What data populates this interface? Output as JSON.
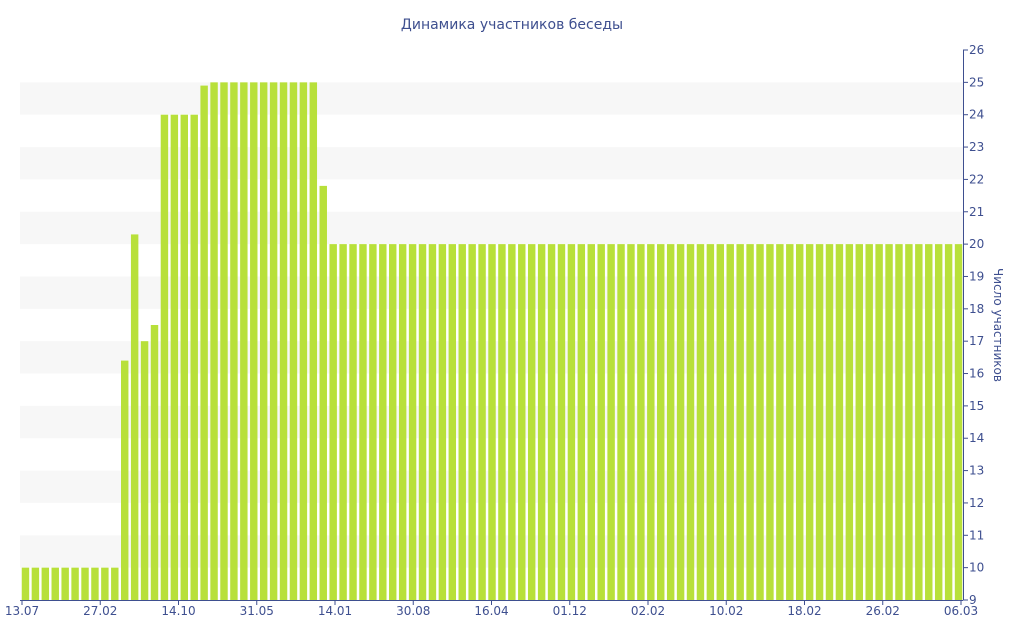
{
  "chart_data": {
    "type": "bar",
    "title": "Динамика участников беседы",
    "xlabel": "",
    "ylabel": "Число участников",
    "ylim": [
      9,
      26
    ],
    "y_ticks": [
      9,
      10,
      11,
      12,
      13,
      14,
      15,
      16,
      17,
      18,
      19,
      20,
      21,
      22,
      23,
      24,
      25,
      26
    ],
    "y_axis_position": "right",
    "grid": "alternating horizontal bands",
    "x_tick_labels": [
      "13.07",
      "27.02",
      "14.10",
      "31.05",
      "14.01",
      "30.08",
      "16.04",
      "01.12",
      "02.02",
      "10.02",
      "18.02",
      "26.02",
      "06.03"
    ],
    "values": [
      10,
      10,
      10,
      10,
      10,
      10,
      10,
      10,
      10,
      10,
      16.4,
      20.3,
      17,
      17.5,
      24,
      24,
      24,
      24,
      24.9,
      25,
      25,
      25,
      25,
      25,
      25,
      25,
      25,
      25,
      25,
      25,
      21.8,
      20,
      20,
      20,
      20,
      20,
      20,
      20,
      20,
      20,
      20,
      20,
      20,
      20,
      20,
      20,
      20,
      20,
      20,
      20,
      20,
      20,
      20,
      20,
      20,
      20,
      20,
      20,
      20,
      20,
      20,
      20,
      20,
      20,
      20,
      20,
      20,
      20,
      20,
      20,
      20,
      20,
      20,
      20,
      20,
      20,
      20,
      20,
      20,
      20,
      20,
      20,
      20,
      20,
      20,
      20,
      20,
      20,
      20,
      20,
      20,
      20,
      20,
      20,
      20
    ]
  },
  "colors": {
    "bar": "#b8e03a",
    "text": "#3e4f8f",
    "band": "#f7f7f7",
    "axis": "#3e4f8f"
  }
}
